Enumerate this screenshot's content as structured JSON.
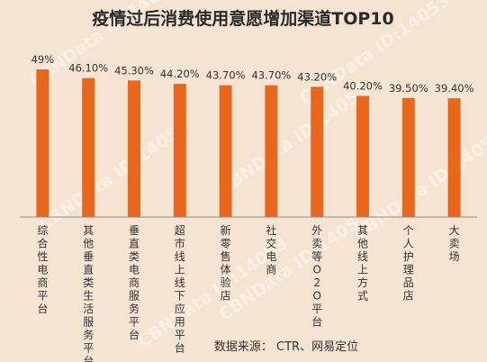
{
  "watermark": "CBNData ID:14053",
  "source": "数据来源： CTR、网易定位",
  "colors": {
    "background": "#f6e4d3",
    "bar": "#e8671c",
    "axis": "#8a8a8a"
  },
  "chart_data": {
    "type": "bar",
    "title": "疫情过后消费使用意愿增加渠道TOP10",
    "categories": [
      "综合性电商平台",
      "其他垂直类生活服务平台",
      "垂直类电商服务平台",
      "超市线上线下应用平台",
      "新零售体验店",
      "社交电商",
      "外卖等O2O平台",
      "其他线上方式",
      "个人护理品店",
      "大卖场"
    ],
    "values": [
      49,
      46.1,
      45.3,
      44.2,
      43.7,
      43.7,
      43.2,
      40.2,
      39.5,
      39.4
    ],
    "value_labels": [
      "49%",
      "46.10%",
      "45.30%",
      "44.20%",
      "43.70%",
      "43.70%",
      "43.20%",
      "40.20%",
      "39.50%",
      "39.40%"
    ],
    "ylim": [
      0,
      49
    ],
    "xlabel": "",
    "ylabel": "",
    "grid": false,
    "legend": "none"
  }
}
